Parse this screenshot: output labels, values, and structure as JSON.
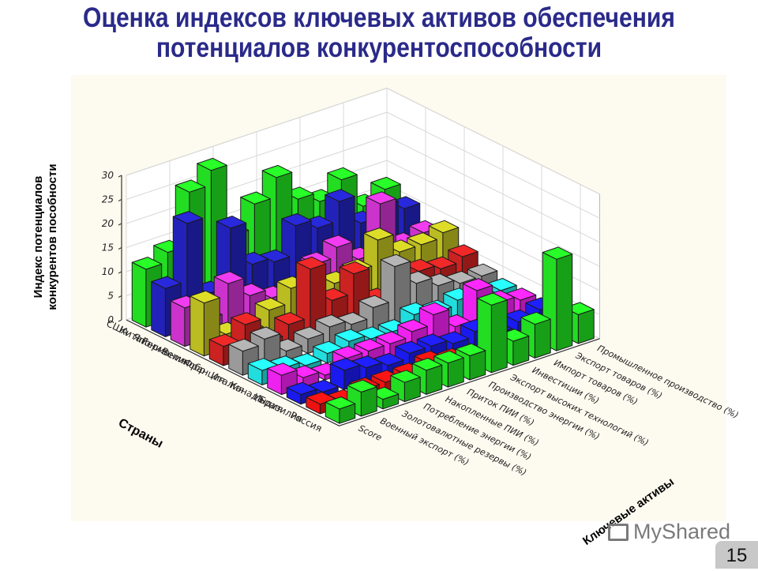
{
  "slide": {
    "title_line1": "Оценка индексов ключевых активов обеспечения",
    "title_line2": "потенциалов конкурентоспособности",
    "page_number": "15",
    "watermark": "MyShared"
  },
  "chart_data": {
    "type": "bar3d",
    "title": "Оценка индексов ключевых активов обеспечения потенциалов конкурентоспособности",
    "ylabel": "Индекс потенциалов конкурентов пособности",
    "xlabel": "Страны",
    "zlabel": "Ключевые активы",
    "yticks": [
      0,
      5,
      10,
      15,
      20,
      25,
      30
    ],
    "ylim": [
      0,
      30
    ],
    "grid": true,
    "countries": [
      "США",
      "Китай",
      "Япония",
      "Германия",
      "Великобр",
      "Франция",
      "Италия",
      "Канада",
      "Индия",
      "Бразилия",
      "Россия"
    ],
    "assets": [
      "Score",
      "Военный экспорт (%)",
      "Золотовалютные резервы (%)",
      "Потребление энергии (%)",
      "Накопленные ПИИ (%)",
      "Приток ПИИ (%)",
      "Производство энергии (%)",
      "Экспорт высоких технологий (%)",
      "Инвестиции (%)",
      "Импорт товаров (%)",
      "Экспорт товаров (%)",
      "Промышленное производство (%)"
    ],
    "country_colors": [
      "#22dd22",
      "#2222bb",
      "#cc33cc",
      "#bbbb22",
      "#cc2222",
      "#9a9a9a",
      "#22dddd",
      "#ee22ee",
      "#1a1aee",
      "#ee1111",
      "#22dd22"
    ],
    "series": [
      {
        "name": "США",
        "values": [
          12,
          14,
          25,
          28,
          13,
          18,
          22,
          16,
          14,
          17,
          10,
          12
        ]
      },
      {
        "name": "Китай",
        "values": [
          10,
          22,
          6,
          18,
          9,
          8,
          14,
          12,
          16,
          10,
          12,
          10
        ]
      },
      {
        "name": "Япония",
        "values": [
          8,
          4,
          10,
          6,
          4,
          3,
          8,
          10,
          6,
          16,
          6,
          7
        ]
      },
      {
        "name": "Германия",
        "values": [
          11,
          3,
          2,
          5,
          8,
          4,
          6,
          7,
          12,
          8,
          8,
          9
        ]
      },
      {
        "name": "Великобр",
        "values": [
          4,
          7,
          2,
          4,
          14,
          6,
          10,
          3,
          5,
          6,
          5,
          6
        ]
      },
      {
        "name": "Франция",
        "values": [
          5,
          6,
          2,
          3,
          4,
          3,
          5,
          12,
          7,
          5,
          4,
          4
        ]
      },
      {
        "name": "Италия",
        "values": [
          3,
          2,
          1,
          2,
          3,
          2,
          2,
          4,
          3,
          4,
          3,
          3
        ]
      },
      {
        "name": "Канада",
        "values": [
          4,
          2,
          1,
          3,
          3,
          3,
          4,
          6,
          2,
          8,
          4,
          3
        ]
      },
      {
        "name": "Индия",
        "values": [
          2,
          1,
          4,
          3,
          2,
          3,
          3,
          2,
          3,
          1,
          2,
          3
        ]
      },
      {
        "name": "Бразилия",
        "values": [
          2,
          1,
          2,
          2,
          2,
          3,
          2,
          1,
          2,
          1,
          2,
          2
        ]
      },
      {
        "name": "Россия",
        "values": [
          3,
          5,
          2,
          4,
          5,
          5,
          5,
          14,
          5,
          7,
          19,
          6
        ]
      }
    ]
  }
}
